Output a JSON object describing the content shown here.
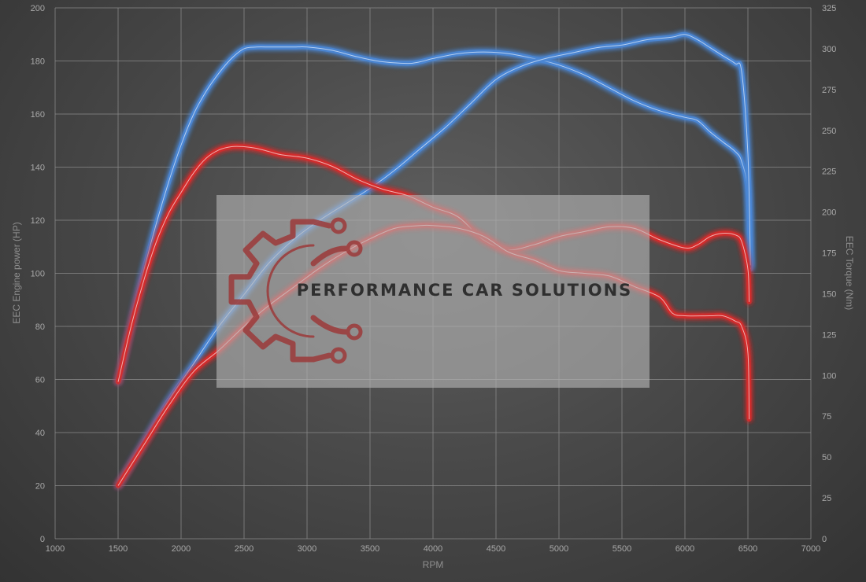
{
  "watermark": {
    "text": "PERFORMANCE CAR SOLUTIONS",
    "logo_icon": "gear-circuit-icon",
    "logo_color": "#9c3a3a"
  },
  "chart_data": {
    "type": "line",
    "title": "",
    "xlabel": "RPM",
    "ylabel": "EEC Engine power (HP)",
    "y2label": "EEC Torque (Nm)",
    "xlim": [
      1000,
      7000
    ],
    "xticks": [
      1000,
      1500,
      2000,
      2500,
      3000,
      3500,
      4000,
      4500,
      5000,
      5500,
      6000,
      6500,
      7000
    ],
    "ylim": [
      0,
      200
    ],
    "yticks": [
      0,
      20,
      40,
      60,
      80,
      100,
      120,
      140,
      160,
      180,
      200
    ],
    "y2lim": [
      0,
      325
    ],
    "y2ticks": [
      0,
      25,
      50,
      75,
      100,
      125,
      150,
      175,
      200,
      225,
      250,
      275,
      300,
      325
    ],
    "grid": true,
    "legend": "none",
    "series": [
      {
        "color": "#4a86d4",
        "axis": "y2",
        "x": [
          1500,
          1600,
          1700,
          1800,
          1900,
          2000,
          2100,
          2200,
          2300,
          2400,
          2500,
          2600,
          2700,
          2800,
          2900,
          3000,
          3200,
          3400,
          3600,
          3800,
          3900,
          4000,
          4200,
          4400,
          4600,
          4800,
          5000,
          5200,
          5400,
          5600,
          5800,
          6000,
          6100,
          6200,
          6300,
          6400,
          6450,
          6500,
          6520
        ],
        "y": [
          96,
          130,
          163,
          192,
          218,
          241,
          260,
          274,
          285,
          294,
          300,
          301,
          301,
          301,
          301,
          301,
          299,
          295,
          292,
          291,
          292,
          294,
          297,
          298,
          297,
          294,
          290,
          284,
          276,
          268,
          262,
          258,
          256,
          249,
          243,
          237,
          231,
          212,
          165
        ]
      },
      {
        "color": "#4a86d4",
        "axis": "y",
        "x": [
          1500,
          1700,
          1900,
          2100,
          2300,
          2500,
          2700,
          2900,
          3100,
          3300,
          3500,
          3700,
          3900,
          4100,
          4300,
          4500,
          4700,
          4900,
          5100,
          5300,
          5500,
          5700,
          5900,
          6000,
          6100,
          6200,
          6300,
          6400,
          6450,
          6500,
          6520
        ],
        "y": [
          20,
          36,
          52,
          66,
          80,
          92,
          104,
          113,
          120,
          126,
          132,
          139,
          147,
          155,
          164,
          173,
          178,
          181,
          183,
          185,
          186,
          188,
          189,
          190,
          188,
          185,
          182,
          179,
          176,
          145,
          103
        ]
      },
      {
        "color": "#d42c2c",
        "axis": "y2",
        "x": [
          1500,
          1600,
          1700,
          1800,
          1900,
          2000,
          2100,
          2200,
          2300,
          2400,
          2500,
          2600,
          2700,
          2800,
          3000,
          3200,
          3400,
          3600,
          3800,
          4000,
          4200,
          4400,
          4600,
          4800,
          5000,
          5200,
          5400,
          5600,
          5800,
          6000,
          6100,
          6200,
          6300,
          6400,
          6450,
          6500,
          6510
        ],
        "y": [
          96,
          129,
          157,
          181,
          199,
          212,
          224,
          233,
          238,
          240,
          240,
          239,
          237,
          235,
          233,
          228,
          220,
          214,
          210,
          203,
          197,
          183,
          177,
          180,
          185,
          188,
          191,
          190,
          183,
          178,
          180,
          185,
          187,
          186,
          182,
          165,
          145
        ]
      },
      {
        "color": "#d42c2c",
        "axis": "y",
        "x": [
          1500,
          1700,
          1900,
          2100,
          2300,
          2500,
          2700,
          2900,
          3100,
          3300,
          3500,
          3700,
          3900,
          4000,
          4200,
          4400,
          4600,
          4800,
          5000,
          5200,
          5400,
          5600,
          5800,
          5900,
          6000,
          6200,
          6300,
          6400,
          6450,
          6500,
          6510
        ],
        "y": [
          20,
          35,
          50,
          63,
          71,
          80,
          88,
          95,
          102,
          108,
          113,
          117,
          118,
          118,
          117,
          114,
          108,
          105,
          101,
          100,
          99,
          95,
          91,
          85,
          84,
          84,
          84,
          82,
          80,
          70,
          45
        ]
      }
    ]
  }
}
